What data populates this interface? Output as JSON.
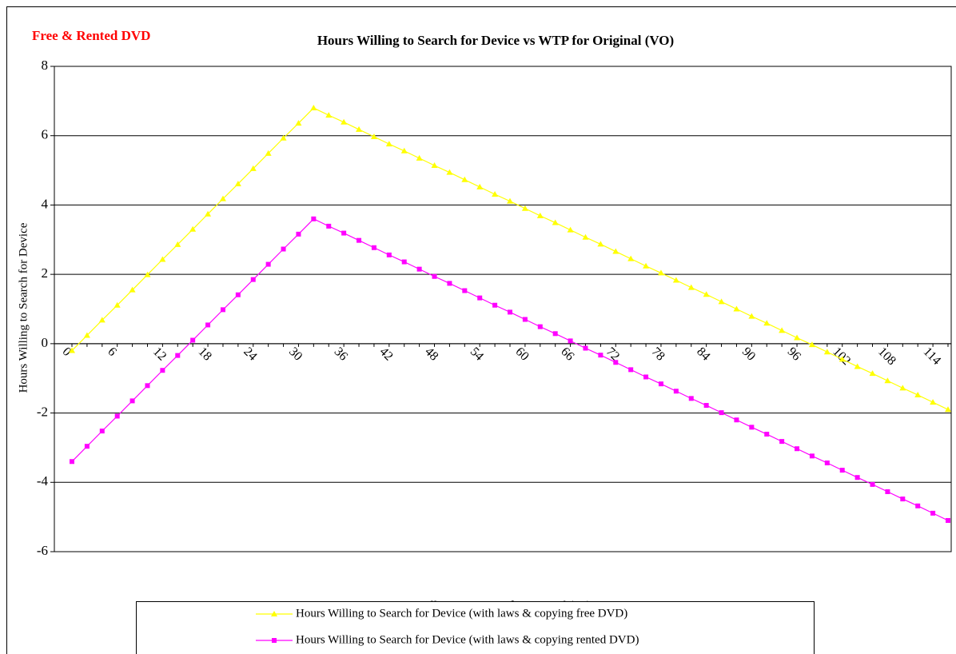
{
  "chart_data": {
    "type": "line",
    "title": "Hours Willing to Search for Device vs WTP for Original (VO)",
    "annotation": "Free & Rented DVD",
    "x_label": "Willingness to Pay for Original (Vo)",
    "y_label": "Hours Willing to Search for Device",
    "categories": [
      0,
      null,
      null,
      6,
      null,
      null,
      12,
      null,
      null,
      18,
      null,
      null,
      24,
      null,
      null,
      30,
      null,
      null,
      36,
      null,
      null,
      42,
      null,
      null,
      48,
      null,
      null,
      54,
      null,
      null,
      60,
      null,
      null,
      66,
      null,
      null,
      72,
      null,
      null,
      78,
      null,
      null,
      84,
      null,
      null,
      90,
      null,
      null,
      96,
      null,
      null,
      102,
      null,
      null,
      108,
      null,
      null,
      114,
      null
    ],
    "series": [
      {
        "name": "Hours Willing to Search for Device (with laws & copying free DVD)",
        "color": "#ffff00",
        "marker": "triangle",
        "values": [
          -0.2,
          0.24,
          0.68,
          1.11,
          1.55,
          1.99,
          2.43,
          2.86,
          3.3,
          3.74,
          4.18,
          4.61,
          5.05,
          5.49,
          5.93,
          6.36,
          6.8,
          6.59,
          6.39,
          6.18,
          5.97,
          5.76,
          5.56,
          5.35,
          5.14,
          4.94,
          4.73,
          4.52,
          4.31,
          4.11,
          3.9,
          3.69,
          3.49,
          3.28,
          3.07,
          2.87,
          2.66,
          2.45,
          2.24,
          2.04,
          1.83,
          1.62,
          1.42,
          1.21,
          1.0,
          0.79,
          0.59,
          0.38,
          0.17,
          -0.03,
          -0.24,
          -0.45,
          -0.66,
          -0.86,
          -1.07,
          -1.28,
          -1.48,
          -1.69,
          -1.9
        ]
      },
      {
        "name": "Hours Willing to Search for Device (with laws & copying rented DVD)",
        "color": "#ff00ff",
        "marker": "square",
        "values": [
          -3.4,
          -2.96,
          -2.52,
          -2.09,
          -1.65,
          -1.21,
          -0.77,
          -0.34,
          0.1,
          0.54,
          0.98,
          1.41,
          1.85,
          2.29,
          2.73,
          3.16,
          3.6,
          3.39,
          3.19,
          2.98,
          2.77,
          2.56,
          2.36,
          2.15,
          1.94,
          1.74,
          1.53,
          1.32,
          1.11,
          0.91,
          0.7,
          0.49,
          0.29,
          0.08,
          -0.13,
          -0.33,
          -0.54,
          -0.75,
          -0.96,
          -1.16,
          -1.37,
          -1.58,
          -1.78,
          -1.99,
          -2.2,
          -2.41,
          -2.61,
          -2.82,
          -3.03,
          -3.24,
          -3.44,
          -3.65,
          -3.86,
          -4.06,
          -4.27,
          -4.48,
          -4.68,
          -4.89,
          -5.1
        ]
      }
    ],
    "ylim": [
      -6,
      8
    ],
    "yticks": [
      -6,
      -4,
      -2,
      0,
      2,
      4,
      6,
      8
    ],
    "grid": true
  }
}
